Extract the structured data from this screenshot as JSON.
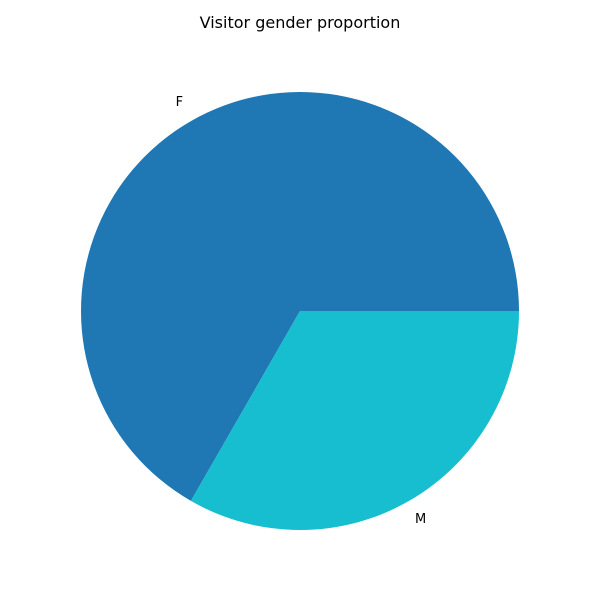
{
  "chart_data": {
    "type": "pie",
    "title": "Visitor gender proportion",
    "labels": [
      "F",
      "M"
    ],
    "values": [
      66.7,
      33.3
    ],
    "colors": [
      "#1f77b4",
      "#17becf"
    ],
    "start_angle_deg": 0,
    "direction": "counterclockwise",
    "legend": "none"
  }
}
